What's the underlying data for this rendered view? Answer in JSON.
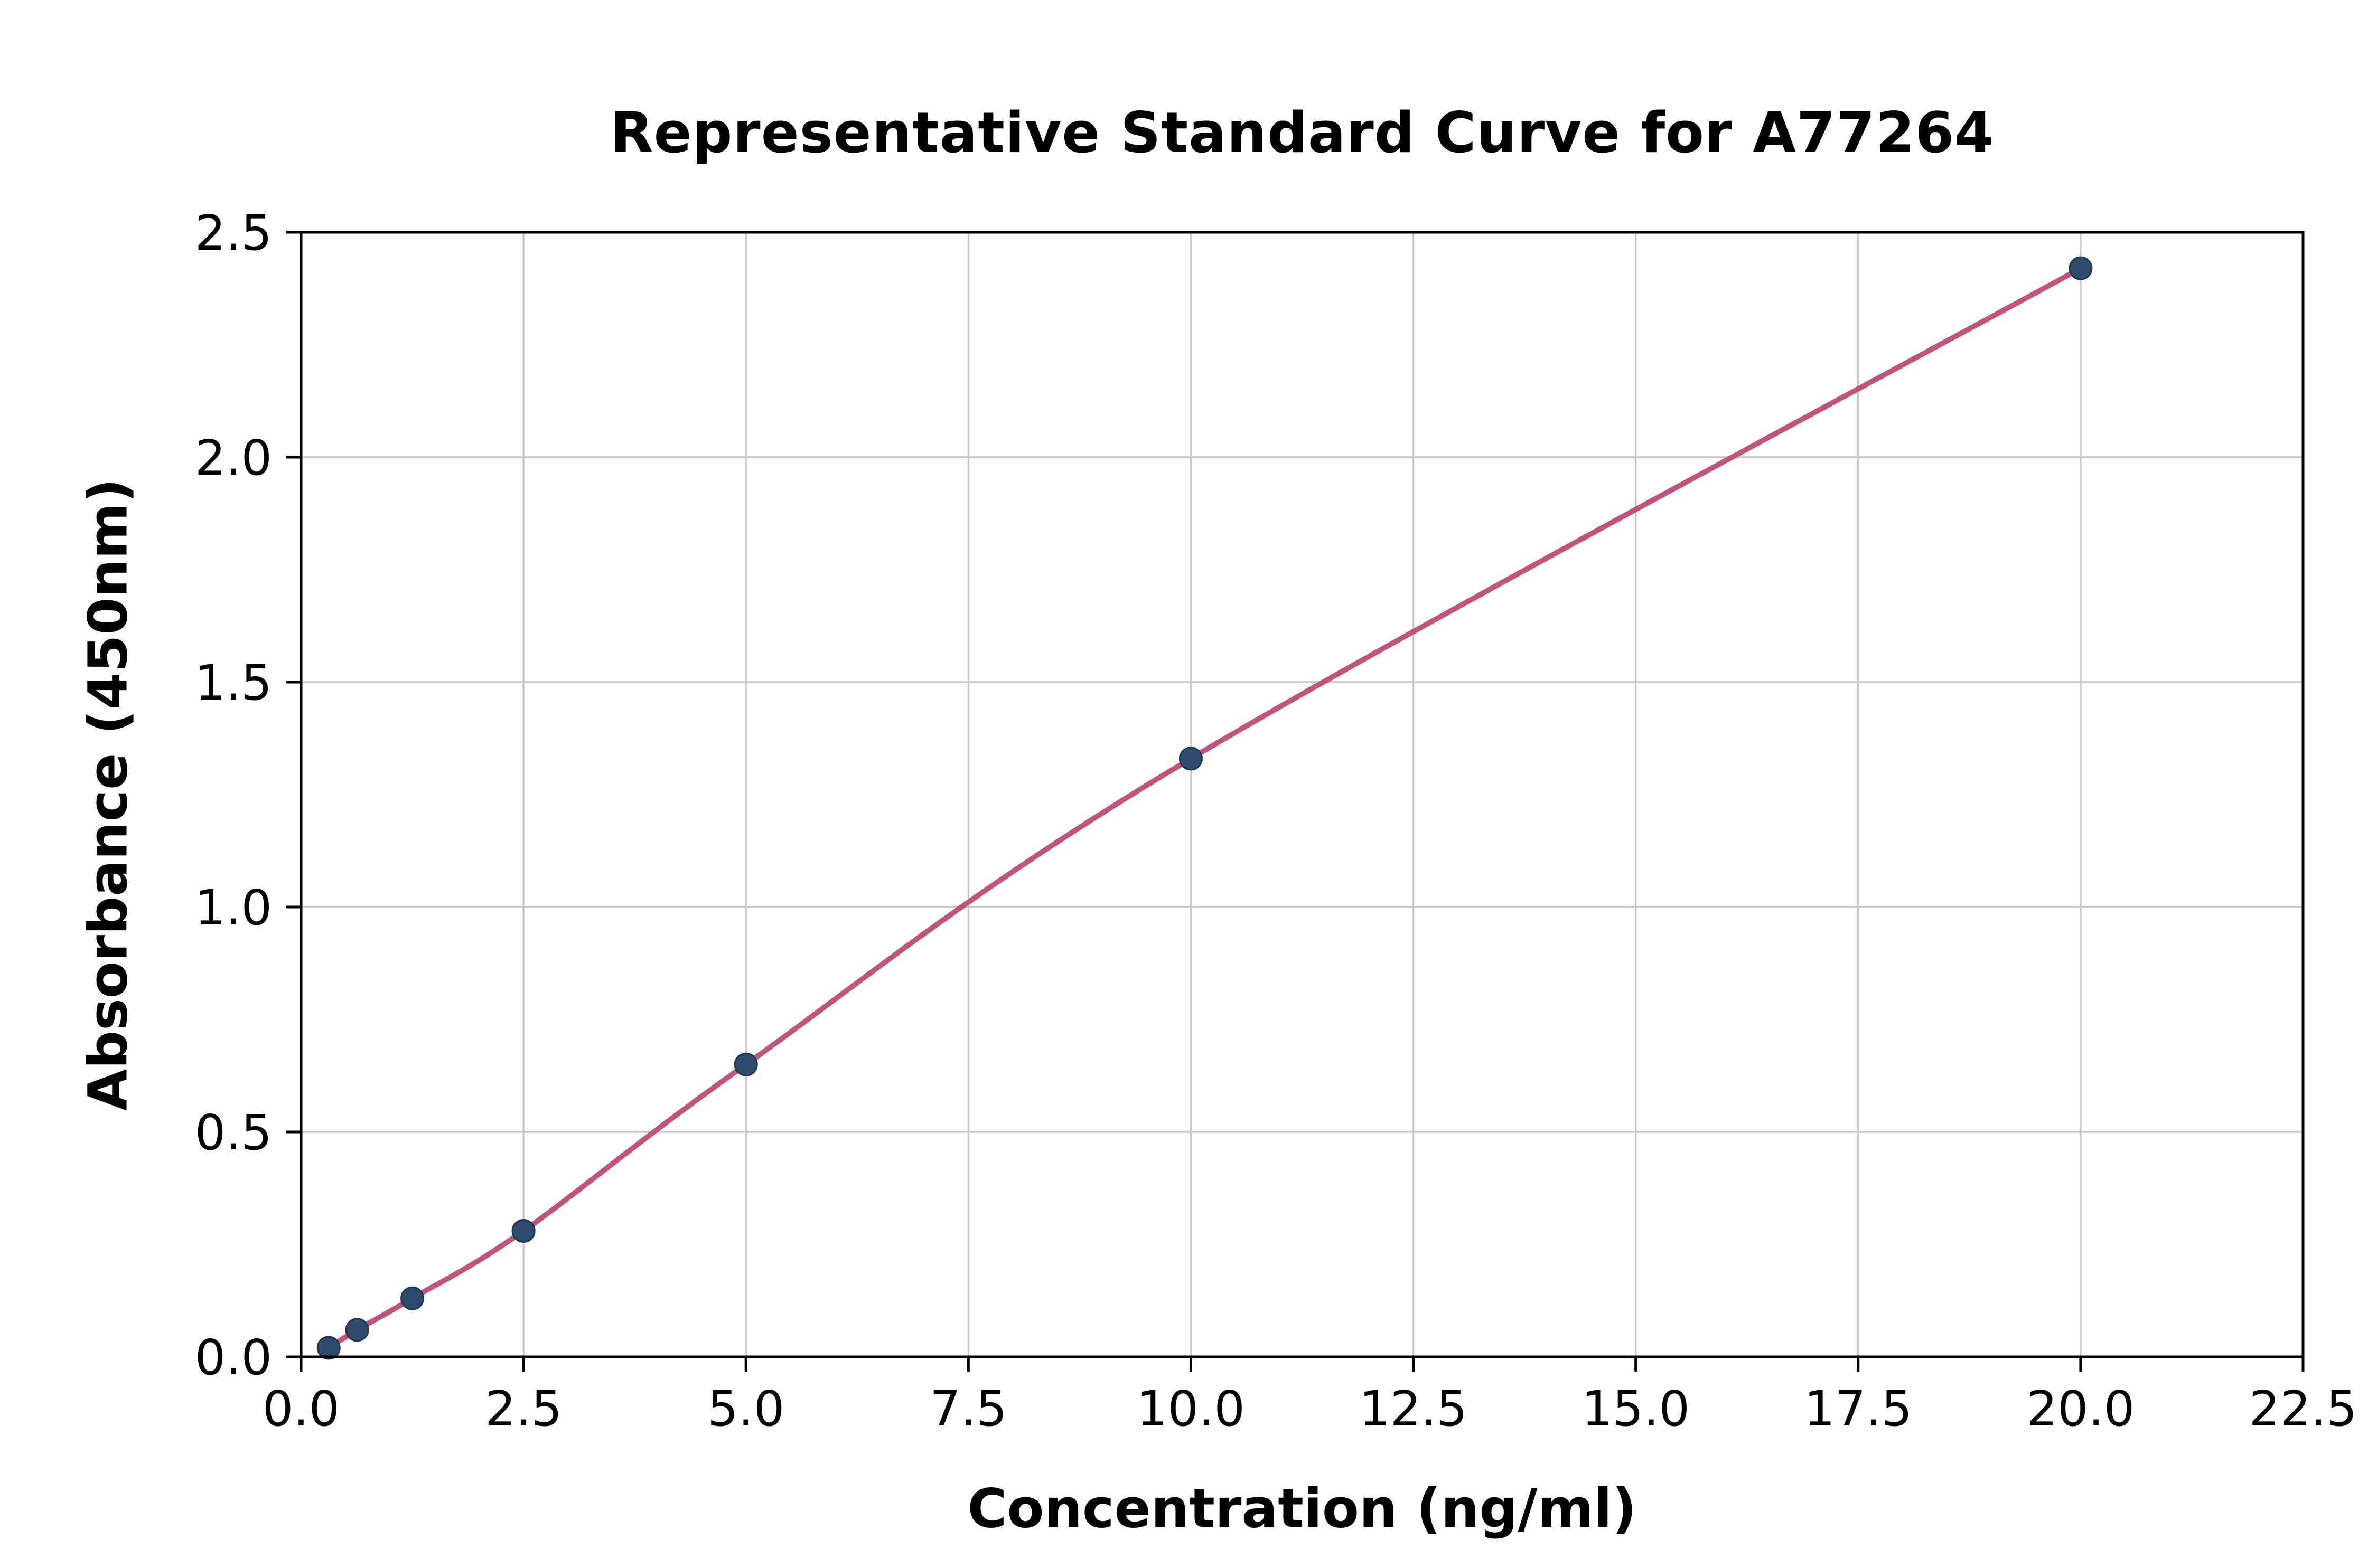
{
  "chart_data": {
    "type": "line",
    "title": "Representative Standard Curve for A77264",
    "xlabel": "Concentration (ng/ml)",
    "ylabel": "Absorbance (450nm)",
    "xlim": [
      0,
      22.5
    ],
    "ylim": [
      0,
      2.5
    ],
    "grid": true,
    "legend": "none",
    "x_ticks": [
      0.0,
      2.5,
      5.0,
      7.5,
      10.0,
      12.5,
      15.0,
      17.5,
      20.0,
      22.5
    ],
    "x_tick_labels": [
      "0.0",
      "2.5",
      "5.0",
      "7.5",
      "10.0",
      "12.5",
      "15.0",
      "17.5",
      "20.0",
      "22.5"
    ],
    "y_ticks": [
      0.0,
      0.5,
      1.0,
      1.5,
      2.0,
      2.5
    ],
    "y_tick_labels": [
      "0.0",
      "0.5",
      "1.0",
      "1.5",
      "2.0",
      "2.5"
    ],
    "points": [
      {
        "x": 0.31,
        "y": 0.02
      },
      {
        "x": 0.63,
        "y": 0.06
      },
      {
        "x": 1.25,
        "y": 0.13
      },
      {
        "x": 2.5,
        "y": 0.28
      },
      {
        "x": 5.0,
        "y": 0.65
      },
      {
        "x": 10.0,
        "y": 1.33
      },
      {
        "x": 20.0,
        "y": 2.42
      }
    ],
    "colors": {
      "line": "#c2547b",
      "marker": "#2e4d6e",
      "marker_edge": "#1d3953",
      "grid": "#c9c9c9",
      "axis": "#000000",
      "background": "#ffffff"
    }
  }
}
